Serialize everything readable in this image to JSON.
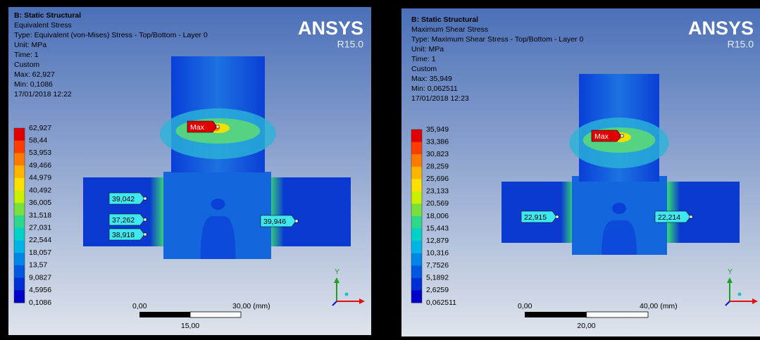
{
  "panels": [
    {
      "title": "B: Static Structural",
      "lines": [
        "Equivalent Stress",
        "Type: Equivalent (von-Mises) Stress - Top/Bottom - Layer 0",
        "Unit: MPa",
        "Time: 1",
        "Custom",
        "Max: 62,927",
        "Min: 0,1086",
        "17/01/2018 12:22"
      ],
      "legend": [
        "62,927",
        "58,44",
        "53,953",
        "49,466",
        "44,979",
        "40,492",
        "36,005",
        "31,518",
        "27,031",
        "22,544",
        "18,057",
        "13,57",
        "9,0827",
        "4,5956",
        "0,1086"
      ],
      "probes": [
        "Max",
        "39,042",
        "37,262",
        "38,918",
        "39,946"
      ],
      "scale": {
        "start": "0,00",
        "end": "30,00 (mm)",
        "mid": "15,00"
      },
      "logo": "ANSYS",
      "version": "R15.0",
      "axis": "Y"
    },
    {
      "title": "B: Static Structural",
      "lines": [
        "Maximum Shear Stress",
        "Type: Maximum Shear Stress - Top/Bottom - Layer 0",
        "Unit: MPa",
        "Time: 1",
        "Custom",
        "Max: 35,949",
        "Min: 0,062511",
        "17/01/2018 12:23"
      ],
      "legend": [
        "35,949",
        "33,386",
        "30,823",
        "28,259",
        "25,696",
        "23,133",
        "20,569",
        "18,006",
        "15,443",
        "12,879",
        "10,316",
        "7,7526",
        "5,1892",
        "2,6259",
        "0,062511"
      ],
      "probes": [
        "Max",
        "22,915",
        "22,214"
      ],
      "scale": {
        "start": "0,00",
        "end": "40,00 (mm)",
        "mid": "20,00"
      },
      "logo": "ANSYS",
      "version": "R15.0",
      "axis": "Y"
    }
  ]
}
